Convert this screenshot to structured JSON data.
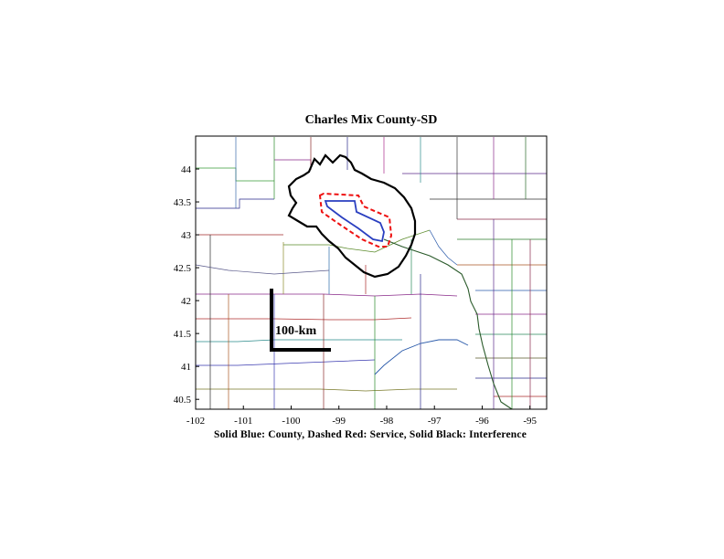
{
  "map": {
    "title": "Charles Mix County-SD",
    "caption": "Solid Blue: County, Dashed Red: Service, Solid Black: Interference",
    "scale_label": "100-km",
    "x_ticks": [
      "-102",
      "-101",
      "-100",
      "-99",
      "-98",
      "-97",
      "-96",
      "-95"
    ],
    "y_ticks": [
      "44",
      "43.5",
      "43",
      "42.5",
      "42",
      "41.5",
      "41",
      "40.5"
    ],
    "x_range": [
      -102,
      -94.65
    ],
    "y_range": [
      40.35,
      44.5
    ],
    "colors": {
      "county": "#2a3fc0",
      "service": "#ee1111",
      "interference": "#000000"
    }
  }
}
